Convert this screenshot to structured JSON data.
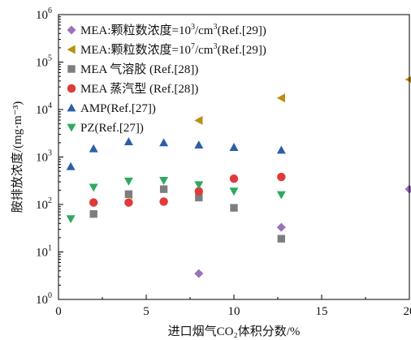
{
  "chart_data": {
    "type": "scatter",
    "xlabel": "进口烟气CO₂体积分数/%",
    "ylabel": "胺排放浓度/(mg·m⁻³)",
    "xlim": [
      0,
      20
    ],
    "ylim": [
      1,
      1000000
    ],
    "yscale": "log",
    "x_ticks": [
      0,
      5,
      10,
      15,
      20
    ],
    "y_ticks": [
      {
        "value": 1,
        "base": "10",
        "exp": "0"
      },
      {
        "value": 10,
        "base": "10",
        "exp": "1"
      },
      {
        "value": 100,
        "base": "10",
        "exp": "2"
      },
      {
        "value": 1000,
        "base": "10",
        "exp": "3"
      },
      {
        "value": 10000,
        "base": "10",
        "exp": "4"
      },
      {
        "value": 100000,
        "base": "10",
        "exp": "5"
      },
      {
        "value": 1000000,
        "base": "10",
        "exp": "6"
      }
    ],
    "grid": false,
    "legend_position": "top-left",
    "series": [
      {
        "name_parts": [
          {
            "t": "MEA:颗粒数浓度=10"
          },
          {
            "t": "3",
            "sup": true
          },
          {
            "t": "/cm"
          },
          {
            "t": "3",
            "sup": true
          },
          {
            "t": "(Ref.[29])"
          }
        ],
        "marker": "diamond",
        "color": "#9b72b8",
        "points": [
          [
            8,
            3.5
          ],
          [
            12.7,
            33
          ],
          [
            20,
            210
          ]
        ]
      },
      {
        "name_parts": [
          {
            "t": "MEA:颗粒数浓度=10"
          },
          {
            "t": "7",
            "sup": true
          },
          {
            "t": "/cm"
          },
          {
            "t": "3",
            "sup": true
          },
          {
            "t": "(Ref.[29])"
          }
        ],
        "marker": "triangle-left",
        "color": "#b8910f",
        "points": [
          [
            4,
            160
          ],
          [
            8,
            5900
          ],
          [
            12.7,
            17500
          ],
          [
            20,
            43000
          ]
        ]
      },
      {
        "name_parts": [
          {
            "t": "MEA 气溶胶 (Ref.[28])"
          }
        ],
        "marker": "square",
        "color": "#7d7d7d",
        "points": [
          [
            2,
            63
          ],
          [
            4,
            165
          ],
          [
            6,
            210
          ],
          [
            8,
            140
          ],
          [
            10,
            85
          ],
          [
            12.7,
            19
          ]
        ]
      },
      {
        "name_parts": [
          {
            "t": "MEA 蒸汽型 (Ref.[28])"
          }
        ],
        "marker": "circle",
        "color": "#e03a3a",
        "points": [
          [
            2,
            110
          ],
          [
            4,
            110
          ],
          [
            6,
            115
          ],
          [
            8,
            190
          ],
          [
            10,
            350
          ],
          [
            12.7,
            380
          ]
        ]
      },
      {
        "name_parts": [
          {
            "t": "AMP(Ref.[27])"
          }
        ],
        "marker": "triangle-up",
        "color": "#2b5fa8",
        "points": [
          [
            0.7,
            630
          ],
          [
            2,
            1500
          ],
          [
            4,
            2100
          ],
          [
            6,
            2000
          ],
          [
            8,
            1800
          ],
          [
            10,
            1600
          ],
          [
            12.7,
            1400
          ]
        ]
      },
      {
        "name_parts": [
          {
            "t": "PZ(Ref.[27])"
          }
        ],
        "marker": "triangle-down",
        "color": "#2eaa5e",
        "points": [
          [
            0.7,
            50
          ],
          [
            2,
            230
          ],
          [
            4,
            310
          ],
          [
            6,
            320
          ],
          [
            8,
            260
          ],
          [
            10,
            190
          ],
          [
            12.7,
            160
          ]
        ]
      }
    ]
  }
}
